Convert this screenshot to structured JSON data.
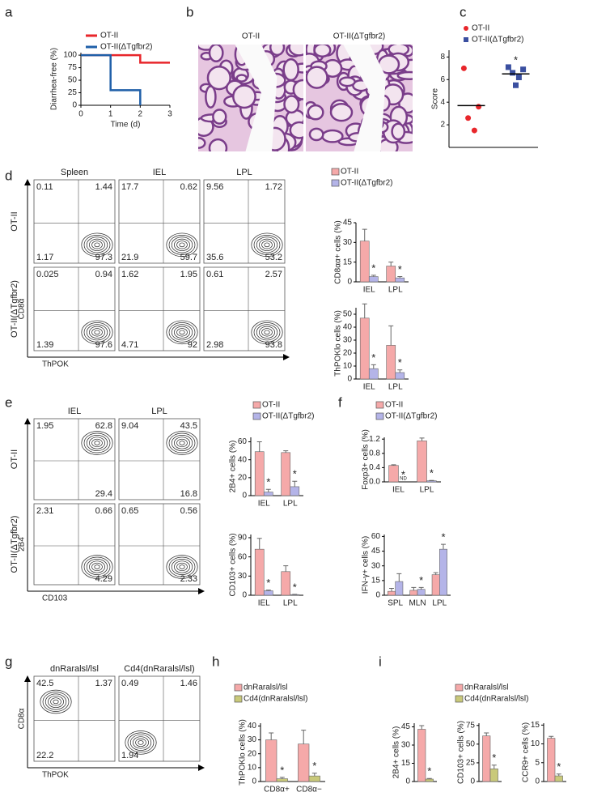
{
  "letters": [
    "a",
    "b",
    "c",
    "d",
    "e",
    "f",
    "g",
    "h",
    "i"
  ],
  "histology": {
    "titles": [
      "OT-II",
      "OT-II(ΔTgfbr2)"
    ]
  },
  "chart_data": [
    {
      "type": "line",
      "x_label": "Time (d)",
      "y_label": "Diarrhea-free (%)",
      "x": [
        0,
        1,
        2,
        3
      ],
      "xlim": [
        0,
        3
      ],
      "xticks": [
        0,
        1,
        2,
        3
      ],
      "ylim": [
        0,
        105
      ],
      "yticks": [
        0,
        25,
        50,
        75,
        100
      ],
      "series": [
        {
          "name": "OT-II",
          "color": "#e8262b",
          "values": [
            100,
            100,
            85,
            85
          ]
        },
        {
          "name": "OT-II(ΔTgfbr2)",
          "color": "#1f5fa8",
          "values": [
            100,
            30,
            0,
            null
          ]
        }
      ]
    },
    {
      "type": "scatter",
      "y_label": "Score",
      "ylim": [
        0,
        8.6
      ],
      "yticks": [
        2,
        4,
        6,
        8
      ],
      "series": [
        {
          "name": "OT-II",
          "color": "#e8262b",
          "marker": "circle",
          "values": [
            7.0,
            3.6,
            2.6,
            1.5
          ],
          "mean": 3.7
        },
        {
          "name": "OT-II(ΔTgfbr2)",
          "color": "#3a4fa0",
          "marker": "square",
          "values": [
            7.1,
            6.9,
            6.6,
            6.2,
            5.5
          ],
          "mean": 6.5,
          "annotation": "*"
        }
      ]
    },
    {
      "type": "bar",
      "y_label": "CD8αα+ cells (%)",
      "categories": [
        "IEL",
        "LPL"
      ],
      "ylim": [
        0,
        45
      ],
      "yticks": [
        0,
        15,
        30,
        45
      ],
      "series": [
        {
          "name": "OT-II",
          "color": "#f5a9a9",
          "values": [
            31,
            12
          ],
          "errors": [
            9,
            3
          ]
        },
        {
          "name": "OT-II(ΔTgfbr2)",
          "color": "#b4b4e8",
          "values": [
            4,
            3
          ],
          "errors": [
            1,
            1
          ],
          "annotations": [
            "*",
            "*"
          ]
        }
      ]
    },
    {
      "type": "bar",
      "y_label": "ThPOKlo cells (%)",
      "categories": [
        "IEL",
        "LPL"
      ],
      "ylim": [
        0,
        55
      ],
      "yticks": [
        0,
        10,
        20,
        30,
        40,
        50
      ],
      "series": [
        {
          "color": "#f5a9a9",
          "values": [
            47,
            26
          ],
          "errors": [
            11,
            15
          ]
        },
        {
          "color": "#b4b4e8",
          "values": [
            8,
            5
          ],
          "errors": [
            3,
            2
          ],
          "annotations": [
            "*",
            "*"
          ]
        }
      ]
    },
    {
      "type": "bar",
      "y_label": "2B4+ cells (%)",
      "categories": [
        "IEL",
        "LPL"
      ],
      "ylim": [
        0,
        65
      ],
      "yticks": [
        0,
        20,
        40,
        60
      ],
      "series": [
        {
          "name": "OT-II",
          "color": "#f5a9a9",
          "values": [
            49,
            48
          ],
          "errors": [
            11,
            2
          ]
        },
        {
          "name": "OT-II(ΔTgfbr2)",
          "color": "#b4b4e8",
          "values": [
            4,
            10
          ],
          "errors": [
            3,
            6
          ],
          "annotations": [
            "*",
            "*"
          ]
        }
      ]
    },
    {
      "type": "bar",
      "y_label": "CD103+ cells (%)",
      "categories": [
        "IEL",
        "LPL"
      ],
      "ylim": [
        0,
        95
      ],
      "yticks": [
        0,
        30,
        60,
        90
      ],
      "series": [
        {
          "color": "#f5a9a9",
          "values": [
            72,
            37
          ],
          "errors": [
            17,
            9
          ]
        },
        {
          "color": "#b4b4e8",
          "values": [
            7,
            1
          ],
          "errors": [
            1,
            0.5
          ],
          "annotations": [
            "*",
            "*"
          ]
        }
      ]
    },
    {
      "type": "bar",
      "y_label": "Foxp3+ cells (%)",
      "categories": [
        "IEL",
        "LPL"
      ],
      "ylim": [
        0,
        1.25
      ],
      "yticks": [
        {
          "value": 0,
          "label": "0.0"
        },
        0.4,
        0.8,
        1.2
      ],
      "series": [
        {
          "name": "OT-II",
          "color": "#f5a9a9",
          "values": [
            0.46,
            1.15
          ],
          "errors": [
            0.02,
            0.08
          ]
        },
        {
          "name": "OT-II(ΔTgfbr2)",
          "color": "#b4b4e8",
          "values": [
            null,
            0.03
          ],
          "value_labels": [
            "ND",
            null
          ],
          "errors": [
            null,
            0.01
          ],
          "annotations": [
            "*",
            "*"
          ]
        }
      ]
    },
    {
      "type": "bar",
      "y_label": "IFN-γ+ cells (%)",
      "categories": [
        "SPL",
        "MLN",
        "LPL"
      ],
      "ylim": [
        0,
        62
      ],
      "yticks": [
        0,
        15,
        30,
        45,
        60
      ],
      "series": [
        {
          "color": "#f5a9a9",
          "values": [
            4,
            5,
            21
          ],
          "errors": [
            3,
            3,
            2
          ]
        },
        {
          "color": "#b4b4e8",
          "values": [
            14,
            6,
            47
          ],
          "errors": [
            8,
            2,
            5
          ],
          "annotations": [
            null,
            "*",
            "*"
          ]
        }
      ]
    },
    {
      "type": "bar",
      "y_label": "ThPOKlo cells (%)",
      "categories": [
        "CD8α+",
        "CD8α−"
      ],
      "ylim": [
        0,
        42
      ],
      "yticks": [
        0,
        10,
        20,
        30,
        40
      ],
      "series": [
        {
          "name": "dnRaralsl/lsl",
          "color": "#f5a9a9",
          "values": [
            30,
            27
          ],
          "errors": [
            5,
            10
          ]
        },
        {
          "name": "Cd4(dnRaralsl/lsl)",
          "color": "#c9c97a",
          "values": [
            2,
            4
          ],
          "errors": [
            1,
            2
          ],
          "annotations": [
            "*",
            "*"
          ]
        }
      ]
    },
    {
      "type": "bar",
      "y_label": "2B4+ cells (%)",
      "ylim": [
        0,
        48
      ],
      "yticks": [
        0,
        15,
        30,
        45
      ],
      "series": [
        {
          "name": "dnRaralsl/lsl",
          "color": "#f5a9a9",
          "values": [
            43
          ],
          "errors": [
            3
          ]
        },
        {
          "name": "Cd4(dnRaralsl/lsl)",
          "color": "#c9c97a",
          "values": [
            2
          ],
          "errors": [
            0.5
          ],
          "annotations": [
            "*"
          ]
        }
      ]
    },
    {
      "type": "bar",
      "y_label": "CD103+ cells (%)",
      "ylim": [
        0,
        78
      ],
      "yticks": [
        0,
        25,
        50,
        75
      ],
      "series": [
        {
          "color": "#f5a9a9",
          "values": [
            61
          ],
          "errors": [
            4
          ]
        },
        {
          "color": "#c9c97a",
          "values": [
            17
          ],
          "errors": [
            5
          ],
          "annotations": [
            "*"
          ]
        }
      ]
    },
    {
      "type": "bar",
      "y_label": "CCR9+ cells (%)",
      "ylim": [
        0,
        15.5
      ],
      "yticks": [
        0,
        5,
        10,
        15
      ],
      "series": [
        {
          "color": "#f5a9a9",
          "values": [
            11.5
          ],
          "errors": [
            0.5
          ]
        },
        {
          "color": "#c9c97a",
          "values": [
            1.5
          ],
          "errors": [
            0.5
          ],
          "annotations": [
            "*"
          ]
        }
      ]
    }
  ],
  "flow": [
    {
      "x_label": "ThPOK",
      "y_label": "CD8α",
      "columns": [
        "Spleen",
        "IEL",
        "LPL"
      ],
      "rows": [
        {
          "label": "OT-II",
          "quadrants": [
            [
              0.11,
              1.44,
              1.17,
              97.3
            ],
            [
              17.7,
              0.62,
              21.9,
              59.7
            ],
            [
              9.56,
              1.72,
              35.6,
              53.2
            ]
          ]
        },
        {
          "label": "OT-II(ΔTgfbr2)",
          "quadrants": [
            [
              0.025,
              0.94,
              1.39,
              97.6
            ],
            [
              1.62,
              1.95,
              4.71,
              92
            ],
            [
              0.61,
              2.57,
              2.98,
              93.8
            ]
          ]
        }
      ]
    },
    {
      "x_label": "CD103",
      "y_label": "2B4",
      "columns": [
        "IEL",
        "LPL"
      ],
      "rows": [
        {
          "label": "OT-II",
          "quadrants": [
            [
              1.95,
              62.8,
              null,
              29.4
            ],
            [
              9.04,
              43.5,
              null,
              16.8
            ]
          ]
        },
        {
          "label": "OT-II(ΔTgfbr2)",
          "quadrants": [
            [
              2.31,
              0.66,
              null,
              4.29
            ],
            [
              0.65,
              0.56,
              null,
              2.33
            ]
          ]
        }
      ]
    },
    {
      "x_label": "ThPOK",
      "y_label": "CD8α",
      "columns": [
        "dnRaralsl/lsl",
        "Cd4(dnRaralsl/lsl)"
      ],
      "rows": [
        {
          "quadrants": [
            [
              42.5,
              1.37,
              22.2,
              null
            ],
            [
              0.49,
              1.46,
              1.94,
              null
            ]
          ]
        }
      ]
    }
  ]
}
